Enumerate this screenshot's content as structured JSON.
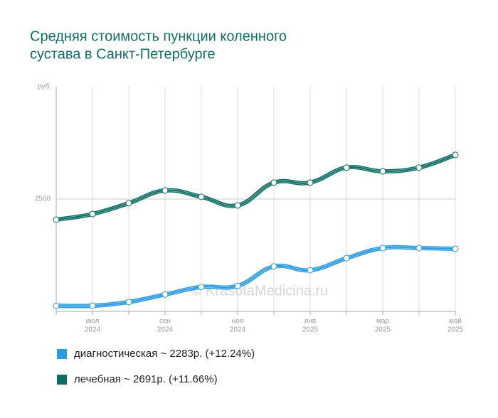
{
  "chart_data": {
    "type": "line",
    "title": [
      "Средняя стоимость пункции коленного",
      "сустава в Санкт-Петербурге"
    ],
    "y_label": "руб.",
    "watermark": "© KrasotaMedicina.ru",
    "categories": [
      null,
      [
        "июл",
        "2024"
      ],
      null,
      [
        "сен",
        "2024"
      ],
      null,
      [
        "ноя",
        "2024"
      ],
      null,
      [
        "янв",
        "2025"
      ],
      null,
      [
        "мар",
        "2025"
      ],
      null,
      [
        "май",
        "2025"
      ]
    ],
    "series": [
      {
        "name": "диагностическая ~ 2283р. (+12.24%)",
        "color": "#2b9be0",
        "values": [
          2215,
          2215,
          2225,
          2245,
          2265,
          2268,
          2320,
          2310,
          2342,
          2369,
          2369,
          2367
        ]
      },
      {
        "name": "лечебная ~ 2691р. (+11.66%)",
        "color": "#0e6e63",
        "values": [
          2445,
          2460,
          2489,
          2523,
          2506,
          2483,
          2544,
          2544,
          2584,
          2574,
          2584,
          2618
        ]
      }
    ],
    "ylim": [
      2200,
      2800
    ],
    "yticks": [
      2500
    ],
    "grid": true
  }
}
